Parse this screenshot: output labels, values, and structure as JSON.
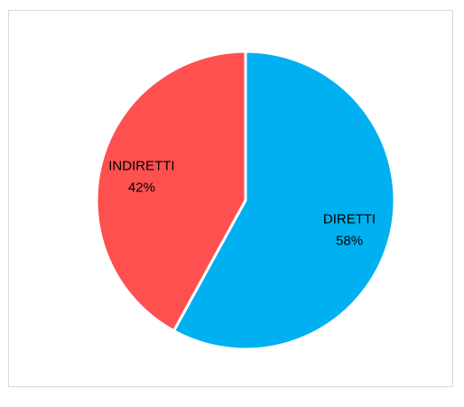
{
  "chart_data": {
    "type": "pie",
    "title": "",
    "slices": [
      {
        "label": "DIRETTI",
        "percent_label": "58%",
        "value": 58,
        "color": "#00b0f0"
      },
      {
        "label": "INDIRETTI",
        "percent_label": "42%",
        "value": 42,
        "color": "#ff5050"
      }
    ],
    "start_angle_deg": 0,
    "direction": "clockwise",
    "legend": "none",
    "data_labels": "inside"
  }
}
